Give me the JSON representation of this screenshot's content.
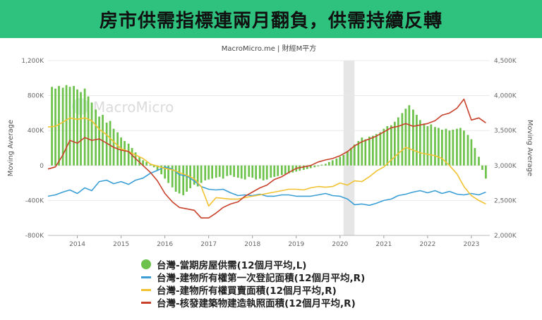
{
  "header": {
    "title": "房市供需指標連兩月翻負，供需持續反轉"
  },
  "chart_data": {
    "type": "bar+line",
    "source": "MacroMicro.me | 財經M平方",
    "watermark": "MacroMicro",
    "ylabel_left": "Moving Average",
    "ylabel_right": "Moving Average",
    "ylim_left": [
      -800000,
      1200000
    ],
    "ylim_right": [
      2000000,
      4500000
    ],
    "yticks_left": [
      "1,200K",
      "800K",
      "400K",
      "0",
      "-400K",
      "-800K"
    ],
    "yticks_left_values": [
      1200000,
      800000,
      400000,
      0,
      -400000,
      -800000
    ],
    "yticks_right": [
      "4,500K",
      "4,000K",
      "3,500K",
      "3,000K",
      "2,500K",
      "2,000K"
    ],
    "yticks_right_values": [
      4500000,
      4000000,
      3500000,
      3000000,
      2500000,
      2000000
    ],
    "xlim": [
      2013.33,
      2023.42
    ],
    "xticks": [
      "2014",
      "2015",
      "2016",
      "2017",
      "2018",
      "2019",
      "2020",
      "2021",
      "2022",
      "2023"
    ],
    "xticks_values": [
      2014,
      2015,
      2016,
      2017,
      2018,
      2019,
      2020,
      2021,
      2022,
      2023
    ],
    "recession_band": [
      2020.08,
      2020.33
    ],
    "legend_placement": "bottom",
    "colors": {
      "bars": "#6cc24a",
      "blue": "#3b9fd6",
      "yellow": "#f1c232",
      "red": "#c8412b",
      "band": "#e6e6e6"
    },
    "bars": {
      "name": "台灣-當期房屋供需(12個月平均,L)",
      "axis": "left",
      "x": [
        2013.42,
        2013.5,
        2013.58,
        2013.67,
        2013.75,
        2013.83,
        2013.92,
        2014.0,
        2014.08,
        2014.17,
        2014.25,
        2014.33,
        2014.42,
        2014.5,
        2014.58,
        2014.67,
        2014.75,
        2014.83,
        2014.92,
        2015.0,
        2015.08,
        2015.17,
        2015.25,
        2015.33,
        2015.42,
        2015.5,
        2015.58,
        2015.67,
        2015.75,
        2015.83,
        2015.92,
        2016.0,
        2016.08,
        2016.17,
        2016.25,
        2016.33,
        2016.42,
        2016.5,
        2016.58,
        2016.67,
        2016.75,
        2016.83,
        2016.92,
        2017.0,
        2017.08,
        2017.17,
        2017.25,
        2017.33,
        2017.42,
        2017.5,
        2017.58,
        2017.67,
        2017.75,
        2017.83,
        2017.92,
        2018.0,
        2018.08,
        2018.17,
        2018.25,
        2018.33,
        2018.42,
        2018.5,
        2018.58,
        2018.67,
        2018.75,
        2018.83,
        2018.92,
        2019.0,
        2019.08,
        2019.17,
        2019.25,
        2019.33,
        2019.42,
        2019.5,
        2019.58,
        2019.67,
        2019.75,
        2019.83,
        2019.92,
        2020.0,
        2020.08,
        2020.17,
        2020.25,
        2020.33,
        2020.42,
        2020.5,
        2020.58,
        2020.67,
        2020.75,
        2020.83,
        2020.92,
        2021.0,
        2021.08,
        2021.17,
        2021.25,
        2021.33,
        2021.42,
        2021.5,
        2021.58,
        2021.67,
        2021.75,
        2021.83,
        2021.92,
        2022.0,
        2022.08,
        2022.17,
        2022.25,
        2022.33,
        2022.42,
        2022.5,
        2022.58,
        2022.67,
        2022.75,
        2022.83,
        2022.92,
        2023.0,
        2023.08,
        2023.17,
        2023.25,
        2023.33
      ],
      "values": [
        900000,
        880000,
        910000,
        890000,
        920000,
        900000,
        910000,
        870000,
        840000,
        880000,
        790000,
        720000,
        640000,
        560000,
        580000,
        490000,
        510000,
        420000,
        380000,
        320000,
        280000,
        250000,
        200000,
        150000,
        100000,
        60000,
        40000,
        10000,
        -20000,
        -60000,
        -100000,
        -150000,
        -200000,
        -250000,
        -300000,
        -320000,
        -340000,
        -300000,
        -260000,
        -220000,
        -240000,
        -200000,
        -170000,
        -160000,
        -150000,
        -140000,
        -130000,
        -150000,
        -120000,
        -110000,
        -130000,
        -140000,
        -150000,
        -160000,
        -130000,
        -140000,
        -160000,
        -150000,
        -170000,
        -160000,
        -140000,
        -130000,
        -120000,
        -110000,
        -100000,
        -90000,
        -80000,
        -70000,
        -60000,
        -50000,
        -40000,
        -30000,
        -20000,
        -10000,
        10000,
        20000,
        40000,
        60000,
        80000,
        100000,
        120000,
        160000,
        200000,
        240000,
        280000,
        320000,
        300000,
        330000,
        340000,
        360000,
        380000,
        420000,
        450000,
        460000,
        500000,
        550000,
        600000,
        650000,
        690000,
        640000,
        580000,
        520000,
        480000,
        450000,
        470000,
        440000,
        430000,
        410000,
        420000,
        400000,
        410000,
        420000,
        430000,
        400000,
        350000,
        300000,
        200000,
        100000,
        -50000,
        -150000
      ]
    },
    "series": [
      {
        "name": "台灣-建物所有權第一次登記面積(12個月平均,R)",
        "color_key": "blue",
        "axis": "right",
        "x": [
          2013.33,
          2013.5,
          2013.67,
          2013.83,
          2014.0,
          2014.17,
          2014.33,
          2014.5,
          2014.67,
          2014.83,
          2015.0,
          2015.17,
          2015.33,
          2015.5,
          2015.67,
          2015.83,
          2016.0,
          2016.17,
          2016.33,
          2016.5,
          2016.67,
          2016.83,
          2017.0,
          2017.17,
          2017.33,
          2017.5,
          2017.67,
          2017.83,
          2018.0,
          2018.17,
          2018.33,
          2018.5,
          2018.67,
          2018.83,
          2019.0,
          2019.17,
          2019.33,
          2019.5,
          2019.67,
          2019.83,
          2020.0,
          2020.17,
          2020.33,
          2020.5,
          2020.67,
          2020.83,
          2021.0,
          2021.17,
          2021.33,
          2021.5,
          2021.67,
          2021.83,
          2022.0,
          2022.17,
          2022.33,
          2022.5,
          2022.67,
          2022.83,
          2023.0,
          2023.17,
          2023.33
        ],
        "values": [
          2560000,
          2580000,
          2620000,
          2650000,
          2600000,
          2680000,
          2640000,
          2770000,
          2790000,
          2740000,
          2770000,
          2730000,
          2790000,
          2820000,
          2890000,
          2930000,
          2980000,
          2950000,
          2870000,
          2850000,
          2780000,
          2700000,
          2660000,
          2650000,
          2660000,
          2610000,
          2570000,
          2580000,
          2570000,
          2590000,
          2560000,
          2560000,
          2580000,
          2580000,
          2560000,
          2560000,
          2560000,
          2580000,
          2600000,
          2570000,
          2560000,
          2520000,
          2440000,
          2450000,
          2430000,
          2460000,
          2500000,
          2520000,
          2570000,
          2590000,
          2620000,
          2640000,
          2610000,
          2640000,
          2600000,
          2630000,
          2590000,
          2580000,
          2600000,
          2580000,
          2620000
        ]
      },
      {
        "name": "台灣-建物所有權買賣面積(12個月平均,R)",
        "color_key": "yellow",
        "axis": "right",
        "x": [
          2013.33,
          2013.5,
          2013.67,
          2013.83,
          2014.0,
          2014.17,
          2014.33,
          2014.5,
          2014.67,
          2014.83,
          2015.0,
          2015.17,
          2015.33,
          2015.5,
          2015.67,
          2015.83,
          2016.0,
          2016.17,
          2016.33,
          2016.5,
          2016.67,
          2016.83,
          2017.0,
          2017.17,
          2017.33,
          2017.5,
          2017.67,
          2017.83,
          2018.0,
          2018.17,
          2018.33,
          2018.5,
          2018.67,
          2018.83,
          2019.0,
          2019.17,
          2019.33,
          2019.5,
          2019.67,
          2019.83,
          2020.0,
          2020.17,
          2020.33,
          2020.5,
          2020.67,
          2020.83,
          2021.0,
          2021.17,
          2021.33,
          2021.5,
          2021.67,
          2021.83,
          2022.0,
          2022.17,
          2022.33,
          2022.5,
          2022.67,
          2022.83,
          2023.0,
          2023.17,
          2023.33
        ],
        "values": [
          3550000,
          3560000,
          3620000,
          3680000,
          3660000,
          3680000,
          3640000,
          3520000,
          3440000,
          3340000,
          3240000,
          3200000,
          3150000,
          3100000,
          3020000,
          2990000,
          2960000,
          2940000,
          2900000,
          2860000,
          2810000,
          2700000,
          2420000,
          2540000,
          2530000,
          2520000,
          2520000,
          2540000,
          2560000,
          2580000,
          2600000,
          2620000,
          2640000,
          2660000,
          2660000,
          2650000,
          2680000,
          2700000,
          2690000,
          2700000,
          2750000,
          2720000,
          2780000,
          2770000,
          2840000,
          2920000,
          2980000,
          3080000,
          3170000,
          3260000,
          3220000,
          3180000,
          3160000,
          3140000,
          3100000,
          3000000,
          2880000,
          2700000,
          2570000,
          2500000,
          2450000
        ]
      },
      {
        "name": "台灣-核發建築物建造執照面積(12個月平均,R)",
        "color_key": "red",
        "axis": "right",
        "x": [
          2013.33,
          2013.5,
          2013.67,
          2013.83,
          2014.0,
          2014.17,
          2014.33,
          2014.5,
          2014.67,
          2014.83,
          2015.0,
          2015.17,
          2015.33,
          2015.5,
          2015.67,
          2015.83,
          2016.0,
          2016.17,
          2016.33,
          2016.5,
          2016.67,
          2016.83,
          2017.0,
          2017.17,
          2017.33,
          2017.5,
          2017.67,
          2017.83,
          2018.0,
          2018.17,
          2018.33,
          2018.5,
          2018.67,
          2018.83,
          2019.0,
          2019.17,
          2019.33,
          2019.5,
          2019.67,
          2019.83,
          2020.0,
          2020.17,
          2020.33,
          2020.5,
          2020.67,
          2020.83,
          2021.0,
          2021.17,
          2021.33,
          2021.5,
          2021.67,
          2021.83,
          2022.0,
          2022.17,
          2022.33,
          2022.5,
          2022.67,
          2022.83,
          2023.0,
          2023.17,
          2023.33
        ],
        "values": [
          2950000,
          2980000,
          3150000,
          3360000,
          3320000,
          3400000,
          3360000,
          3380000,
          3320000,
          3260000,
          3220000,
          3200000,
          3100000,
          3000000,
          2900000,
          2780000,
          2600000,
          2480000,
          2400000,
          2380000,
          2360000,
          2250000,
          2250000,
          2320000,
          2400000,
          2450000,
          2480000,
          2560000,
          2620000,
          2680000,
          2720000,
          2800000,
          2840000,
          2900000,
          2960000,
          2980000,
          3000000,
          3050000,
          3080000,
          3100000,
          3140000,
          3200000,
          3280000,
          3340000,
          3380000,
          3420000,
          3480000,
          3540000,
          3560000,
          3600000,
          3560000,
          3580000,
          3600000,
          3640000,
          3720000,
          3750000,
          3820000,
          3950000,
          3650000,
          3680000,
          3610000
        ]
      }
    ],
    "legend": [
      {
        "label": "台灣-當期房屋供需(12個月平均,L)",
        "kind": "dot",
        "color_key": "bars"
      },
      {
        "label": "台灣-建物所有權第一次登記面積(12個月平均,R)",
        "kind": "line",
        "color_key": "blue"
      },
      {
        "label": "台灣-建物所有權買賣面積(12個月平均,R)",
        "kind": "line",
        "color_key": "yellow"
      },
      {
        "label": "台灣-核發建築物建造執照面積(12個月平均,R)",
        "kind": "line",
        "color_key": "red"
      }
    ]
  }
}
